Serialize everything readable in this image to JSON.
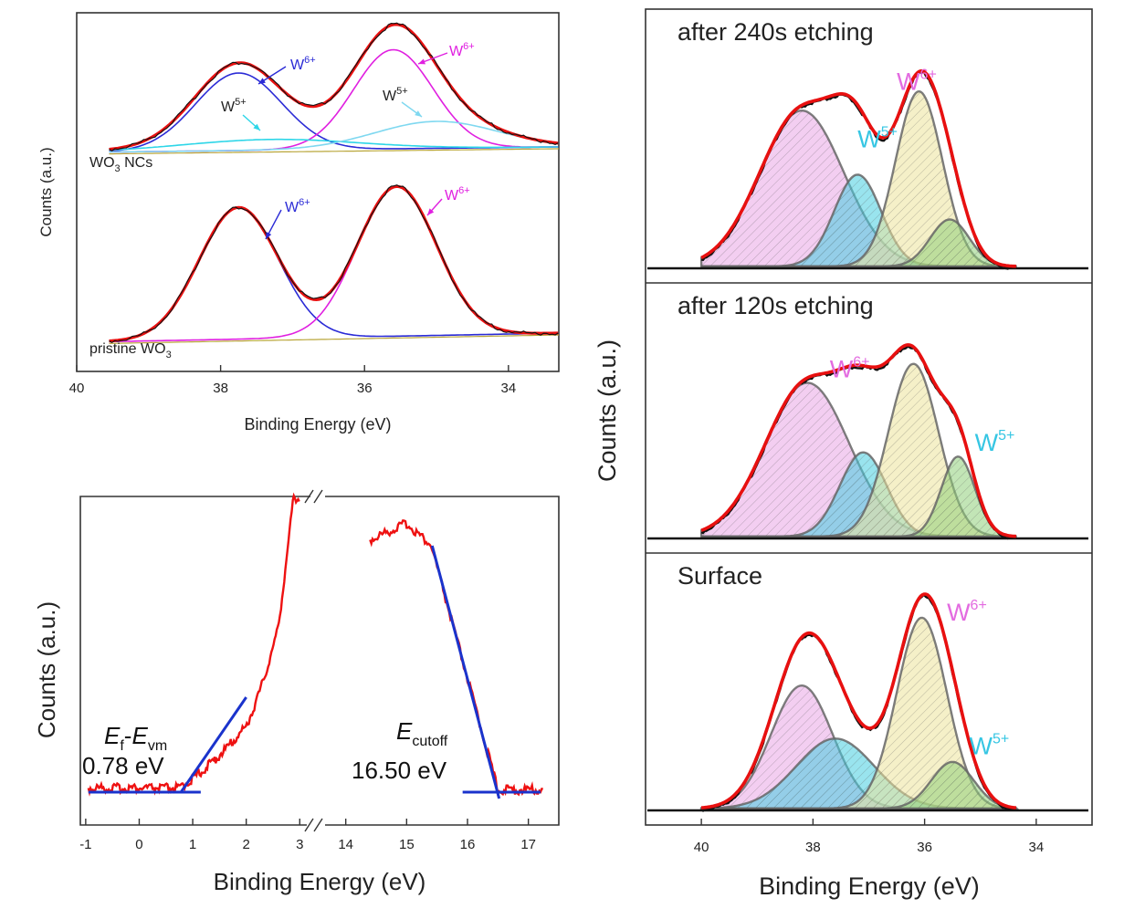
{
  "chart_data": [
    {
      "id": "tl",
      "type": "line",
      "title": "",
      "xlabel": "Binding Energy (eV)",
      "ylabel": "Counts (a.u.)",
      "xlim": [
        40,
        33.3
      ],
      "x_reversed": true,
      "xticks": [
        40,
        38,
        36,
        34
      ],
      "panels": [
        {
          "label": "WO3 NCs",
          "label_main": "WO",
          "label_sub": "3",
          "label_tail": " NCs",
          "baseline": 0,
          "peaks": [
            {
              "name": "W6+",
              "center": 37.75,
              "height": 0.72,
              "sigma": 0.6,
              "color": "#2b2bd6"
            },
            {
              "name": "W6+",
              "center": 35.6,
              "height": 0.92,
              "sigma": 0.55,
              "color": "#e020e0"
            },
            {
              "name": "W5+",
              "center": 37.3,
              "height": 0.1,
              "sigma": 1.2,
              "color": "#2ed6e8"
            },
            {
              "name": "W5+",
              "center": 35.0,
              "height": 0.25,
              "sigma": 0.85,
              "color": "#7fd8f0"
            }
          ],
          "annotations": [
            {
              "text": "W",
              "sup": "6+",
              "color": "#2b2bd6",
              "at": 37.1
            },
            {
              "text": "W",
              "sup": "5+",
              "color": "#222",
              "at": 38.3
            },
            {
              "text": "W",
              "sup": "6+",
              "color": "#e020e0",
              "at": 35.1
            },
            {
              "text": "W",
              "sup": "5+",
              "color": "#222",
              "at": 35.55
            }
          ]
        },
        {
          "label": "pristine WO3",
          "label_main": "pristine WO",
          "label_sub": "3",
          "label_tail": "",
          "baseline": 0,
          "peaks": [
            {
              "name": "W6+",
              "center": 37.75,
              "height": 0.88,
              "sigma": 0.55,
              "color": "#2b2bd6"
            },
            {
              "name": "W6+",
              "center": 35.55,
              "height": 1.0,
              "sigma": 0.55,
              "color": "#e020e0"
            }
          ],
          "annotations": [
            {
              "text": "W",
              "sup": "6+",
              "color": "#2b2bd6",
              "at": 37.1
            },
            {
              "text": "W",
              "sup": "6+",
              "color": "#e020e0",
              "at": 35.0
            }
          ]
        }
      ]
    },
    {
      "id": "bl",
      "type": "line",
      "title": "",
      "xlabel": "Binding Energy (eV)",
      "ylabel": "Counts (a.u.)",
      "broken_axis": true,
      "segments": [
        {
          "xlim": [
            -1.1,
            3.2
          ],
          "xticks": [
            -1,
            0,
            1,
            2,
            3
          ]
        },
        {
          "xlim": [
            13.6,
            17.5
          ],
          "xticks": [
            14,
            15,
            16,
            17
          ]
        }
      ],
      "valence_edge": {
        "label_E": "E",
        "label_sub1": "f",
        "label_dash": "-",
        "label_E2": "E",
        "label_sub2": "vm",
        "value_text": "0.78 eV",
        "onset": 0.78
      },
      "cutoff_edge": {
        "label_E": "E",
        "label_sub": "cutoff",
        "value_text": "16.50 eV",
        "onset": 16.5
      },
      "colors": {
        "data": "#ee1111",
        "fit": "#1a33cc"
      }
    },
    {
      "id": "right",
      "type": "area",
      "title": "",
      "xlabel": "Binding Energy (eV)",
      "ylabel": "Counts (a.u.)",
      "xlim": [
        41.0,
        33.0
      ],
      "x_reversed": true,
      "xticks": [
        40,
        38,
        36,
        34
      ],
      "panels": [
        {
          "label": "after 240s etching",
          "peaks": [
            {
              "center": 38.2,
              "height": 0.73,
              "sigma": 0.75,
              "fill": "#e9a6e6"
            },
            {
              "center": 37.2,
              "height": 0.43,
              "sigma": 0.42,
              "fill": "#46cde0"
            },
            {
              "center": 36.1,
              "height": 0.82,
              "sigma": 0.42,
              "fill": "#ece39a"
            },
            {
              "center": 35.55,
              "height": 0.22,
              "sigma": 0.35,
              "fill": "#8fd07a"
            }
          ],
          "tags": [
            {
              "text": "W",
              "sup": "6+",
              "color": "#e36be0",
              "at": 36.5,
              "level": 0.87
            },
            {
              "text": "W",
              "sup": "5+",
              "color": "#36c6e3",
              "at": 37.2,
              "level": 0.6
            }
          ]
        },
        {
          "label": "after 120s etching",
          "peaks": [
            {
              "center": 38.1,
              "height": 0.73,
              "sigma": 0.75,
              "fill": "#e9a6e6"
            },
            {
              "center": 37.1,
              "height": 0.4,
              "sigma": 0.42,
              "fill": "#46cde0"
            },
            {
              "center": 36.2,
              "height": 0.82,
              "sigma": 0.45,
              "fill": "#ece39a"
            },
            {
              "center": 35.4,
              "height": 0.38,
              "sigma": 0.3,
              "fill": "#8fd07a"
            }
          ],
          "tags": [
            {
              "text": "W",
              "sup": "6+",
              "color": "#e36be0",
              "at": 37.7,
              "level": 0.8
            },
            {
              "text": "W",
              "sup": "5+",
              "color": "#36c6e3",
              "at": 35.1,
              "level": 0.45
            }
          ]
        },
        {
          "label": "Surface",
          "peaks": [
            {
              "center": 38.2,
              "height": 0.58,
              "sigma": 0.55,
              "fill": "#e9a6e6"
            },
            {
              "center": 37.6,
              "height": 0.33,
              "sigma": 0.7,
              "fill": "#46cde0"
            },
            {
              "center": 36.05,
              "height": 0.9,
              "sigma": 0.45,
              "fill": "#ece39a"
            },
            {
              "center": 35.5,
              "height": 0.22,
              "sigma": 0.38,
              "fill": "#8fd07a"
            }
          ],
          "tags": [
            {
              "text": "W",
              "sup": "6+",
              "color": "#e36be0",
              "at": 35.6,
              "level": 0.93
            },
            {
              "text": "W",
              "sup": "5+",
              "color": "#36c6e3",
              "at": 35.2,
              "level": 0.3
            }
          ]
        }
      ]
    }
  ]
}
